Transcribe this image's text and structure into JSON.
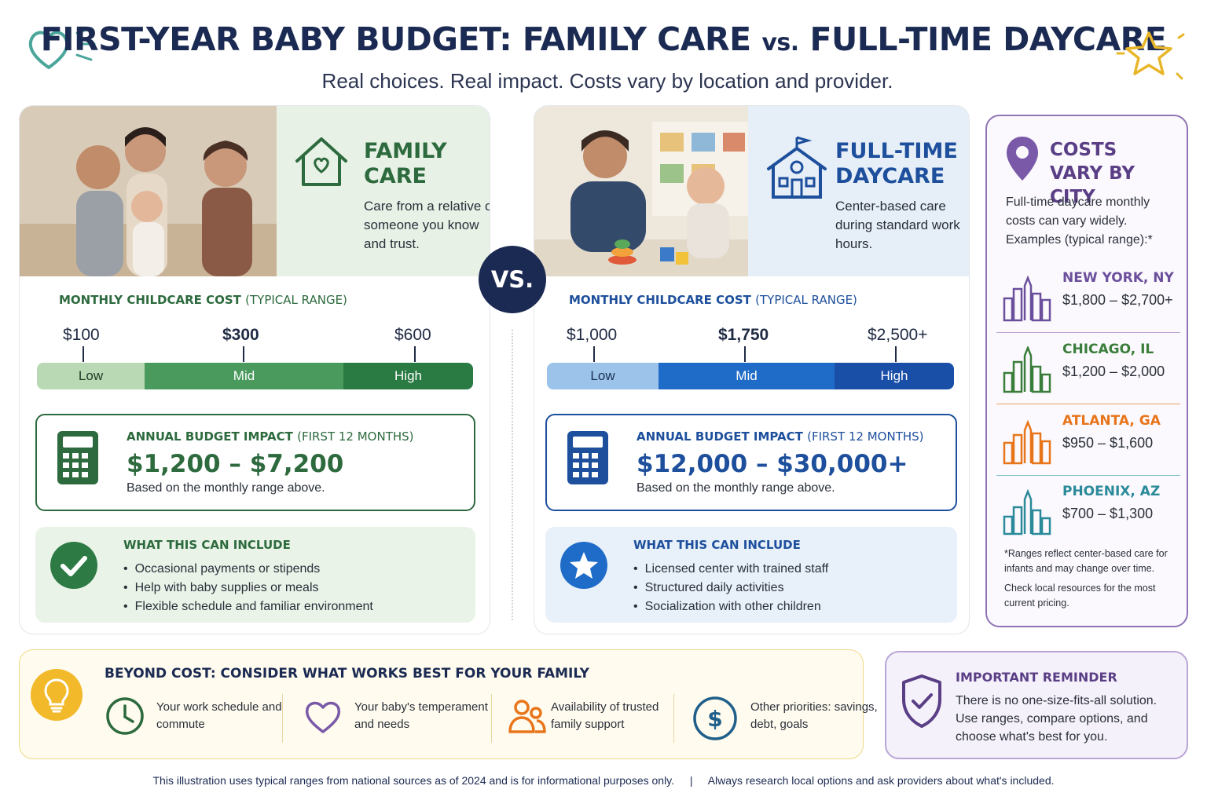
{
  "header": {
    "title_main": "FIRST-YEAR BABY BUDGET: FAMILY CARE",
    "title_vs": "vs.",
    "title_end": "FULL-TIME DAYCARE",
    "subtitle": "Real choices. Real impact. Costs vary by location and provider."
  },
  "vs_badge": "VS.",
  "colors": {
    "family_green": "#2d6a3e",
    "daycare_blue": "#1d4f9c",
    "city_purple": "#5a3f86",
    "navy": "#1b2a52",
    "bulb_yellow": "#f2b92b"
  },
  "family": {
    "title": "FAMILY CARE",
    "description": "Care from a relative or someone you know and trust.",
    "range_label": "MONTHLY CHILDCARE COST",
    "range_label_light": "(TYPICAL RANGE)",
    "ticks": [
      "$100",
      "$300",
      "$600"
    ],
    "bands": [
      "Low",
      "Mid",
      "High"
    ],
    "impact_label": "ANNUAL BUDGET IMPACT",
    "impact_label_light": "(FIRST 12 MONTHS)",
    "impact_value": "$1,200 – $7,200",
    "impact_note": "Based on the monthly range above.",
    "include_title": "WHAT THIS CAN INCLUDE",
    "include_items": [
      "Occasional payments or stipends",
      "Help with baby supplies or meals",
      "Flexible schedule and familiar environment"
    ],
    "hero_icon": "house-heart-icon",
    "impact_icon": "calculator-icon",
    "include_icon": "checkmark-icon"
  },
  "daycare": {
    "title": "FULL-TIME DAYCARE",
    "description": "Center-based care during standard work hours.",
    "range_label": "MONTHLY CHILDCARE COST",
    "range_label_light": "(TYPICAL RANGE)",
    "ticks": [
      "$1,000",
      "$1,750",
      "$2,500+"
    ],
    "bands": [
      "Low",
      "Mid",
      "High"
    ],
    "impact_label": "ANNUAL BUDGET IMPACT",
    "impact_label_light": "(FIRST 12 MONTHS)",
    "impact_value": "$12,000 – $30,000+",
    "impact_note": "Based on the monthly range above.",
    "include_title": "WHAT THIS CAN INCLUDE",
    "include_items": [
      "Licensed center with trained staff",
      "Structured daily activities",
      "Socialization with other children"
    ],
    "hero_icon": "schoolhouse-icon",
    "impact_icon": "calculator-icon",
    "include_icon": "star-icon"
  },
  "cities": {
    "title": "COSTS VARY BY CITY",
    "intro": "Full-time daycare monthly costs can vary widely. Examples (typical range):*",
    "list": [
      {
        "name": "NEW YORK, NY",
        "range": "$1,800 – $2,700+",
        "color": "#6b4f9c"
      },
      {
        "name": "CHICAGO, IL",
        "range": "$1,200 – $2,000",
        "color": "#3a7d3a"
      },
      {
        "name": "ATLANTA, GA",
        "range": "$950 – $1,600",
        "color": "#e8751a"
      },
      {
        "name": "PHOENIX, AZ",
        "range": "$700 – $1,300",
        "color": "#2a8a9a"
      }
    ],
    "footnote": "*Ranges reflect center-based care for infants and may change over time.",
    "check_note": "Check local resources for the most current pricing."
  },
  "beyond": {
    "title": "BEYOND COST: CONSIDER WHAT WORKS BEST FOR YOUR FAMILY",
    "factors": [
      {
        "text": "Your work schedule and commute",
        "icon": "clock-icon"
      },
      {
        "text": "Your baby's temperament and needs",
        "icon": "heart-icon"
      },
      {
        "text": "Availability of trusted family support",
        "icon": "people-icon"
      },
      {
        "text": "Other priorities: savings, debt, goals",
        "icon": "dollar-icon"
      }
    ]
  },
  "reminder": {
    "title": "IMPORTANT REMINDER",
    "text": "There is no one-size-fits-all solution. Use ranges, compare options, and choose what's best for you."
  },
  "footer": {
    "left": "This illustration uses typical ranges from national sources as of 2024 and is for informational purposes only.",
    "separator": "|",
    "right": "Always research local options and ask providers about what's included."
  }
}
